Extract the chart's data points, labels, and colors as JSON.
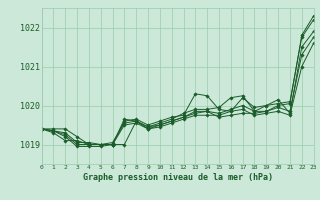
{
  "background_color": "#cce8d8",
  "plot_bg_color": "#cce8d8",
  "grid_color": "#99ccaa",
  "line_color": "#1a5c2a",
  "title": "Graphe pression niveau de la mer (hPa)",
  "xlim": [
    0,
    23
  ],
  "ylim": [
    1018.5,
    1022.5
  ],
  "yticks": [
    1019,
    1020,
    1021,
    1022
  ],
  "xticks": [
    0,
    1,
    2,
    3,
    4,
    5,
    6,
    7,
    8,
    9,
    10,
    11,
    12,
    13,
    14,
    15,
    16,
    17,
    18,
    19,
    20,
    21,
    22,
    23
  ],
  "series": [
    [
      1019.4,
      1019.4,
      1019.4,
      1019.2,
      1019.0,
      1019.0,
      1019.0,
      1019.0,
      1019.6,
      1019.4,
      1019.5,
      1019.6,
      1019.7,
      1019.8,
      1019.85,
      1019.7,
      1019.75,
      1019.8,
      1019.8,
      1019.85,
      1020.0,
      1020.05,
      1021.8,
      1022.3
    ],
    [
      1019.4,
      1019.3,
      1019.1,
      1019.1,
      1019.0,
      1019.0,
      1019.0,
      1019.6,
      1019.65,
      1019.5,
      1019.6,
      1019.7,
      1019.75,
      1020.3,
      1020.25,
      1019.9,
      1019.85,
      1020.2,
      1019.95,
      1020.0,
      1020.05,
      1020.1,
      1021.75,
      1022.2
    ],
    [
      1019.4,
      1019.35,
      1019.3,
      1019.05,
      1019.05,
      1019.0,
      1019.0,
      1019.65,
      1019.6,
      1019.45,
      1019.55,
      1019.65,
      1019.8,
      1019.9,
      1019.9,
      1019.95,
      1020.2,
      1020.25,
      1019.85,
      1020.0,
      1020.15,
      1019.8,
      1021.5,
      1021.9
    ],
    [
      1019.4,
      1019.35,
      1019.25,
      1019.0,
      1019.0,
      1019.0,
      1019.05,
      1019.55,
      1019.6,
      1019.45,
      1019.5,
      1019.6,
      1019.7,
      1019.85,
      1019.85,
      1019.8,
      1019.9,
      1020.0,
      1019.85,
      1019.85,
      1019.95,
      1019.85,
      1021.3,
      1021.75
    ],
    [
      1019.4,
      1019.35,
      1019.2,
      1018.95,
      1018.95,
      1018.95,
      1019.0,
      1019.5,
      1019.55,
      1019.4,
      1019.45,
      1019.55,
      1019.65,
      1019.75,
      1019.75,
      1019.75,
      1019.85,
      1019.9,
      1019.75,
      1019.8,
      1019.85,
      1019.75,
      1021.0,
      1021.6
    ]
  ]
}
